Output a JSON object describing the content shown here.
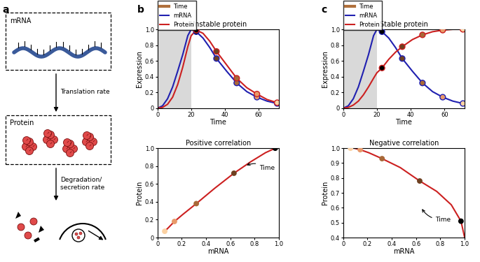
{
  "panel_labels": [
    "a",
    "b",
    "c"
  ],
  "diagram": {
    "boxes": [
      {
        "label": "mRNA"
      },
      {
        "label": "Protein"
      }
    ],
    "arrows": [
      {
        "label": "Translation rate"
      },
      {
        "label": "Degradation/\nsecretion rate"
      }
    ]
  },
  "chart_data": [
    {
      "type": "line",
      "panel": 1,
      "title": "Unstable protein",
      "xlabel": "Time",
      "ylabel": "Expression",
      "xlim": [
        0,
        72
      ],
      "xticks": [
        0,
        20,
        40,
        60
      ],
      "ylim": [
        0,
        1
      ],
      "yticks": [
        0,
        0.2,
        0.4,
        0.6,
        0.8,
        {
          "value": 1,
          "label": "1.0"
        }
      ],
      "shaded_x": [
        0,
        20
      ],
      "legend": "upper left",
      "time_points": {
        "name": "Time",
        "color": "#b0703c",
        "x": [
          23,
          35,
          47,
          59,
          71
        ],
        "colors": [
          "#000000",
          "#6e4020",
          "#a86838",
          "#e89a6a",
          "#fbd1a2"
        ]
      },
      "series": [
        {
          "name": "mRNA",
          "color": "#2020b0",
          "x": [
            0,
            3,
            6,
            9,
            12,
            15,
            18,
            20,
            23,
            27,
            31,
            35,
            41,
            47,
            53,
            59,
            65,
            71
          ],
          "values": [
            0,
            0.03,
            0.12,
            0.27,
            0.47,
            0.68,
            0.92,
            1.0,
            0.97,
            0.89,
            0.77,
            0.63,
            0.47,
            0.32,
            0.21,
            0.14,
            0.09,
            0.06
          ]
        },
        {
          "name": "Protein",
          "color": "#cc2020",
          "x": [
            0,
            3,
            6,
            9,
            12,
            15,
            18,
            20,
            23,
            27,
            31,
            35,
            41,
            47,
            53,
            59,
            65,
            71
          ],
          "values": [
            0,
            0.01,
            0.05,
            0.14,
            0.3,
            0.52,
            0.78,
            0.92,
            0.99,
            0.95,
            0.85,
            0.72,
            0.55,
            0.38,
            0.26,
            0.18,
            0.11,
            0.07
          ]
        }
      ]
    },
    {
      "type": "line",
      "panel": 1,
      "title": "Positive correlation",
      "xlabel": "mRNA",
      "ylabel": "Protein",
      "xlim": [
        0,
        1
      ],
      "xticks": [
        0,
        0.2,
        0.4,
        0.6,
        0.8,
        {
          "value": 1,
          "label": "1.0"
        }
      ],
      "ylim": [
        0,
        1
      ],
      "yticks": [
        0,
        0.2,
        0.4,
        0.6,
        0.8,
        {
          "value": 1,
          "label": "1.0"
        }
      ],
      "annotation": "Time",
      "curve": {
        "color": "#cc2020",
        "x": [
          0.06,
          0.09,
          0.14,
          0.21,
          0.32,
          0.47,
          0.63,
          0.77,
          0.89,
          0.97
        ],
        "values": [
          0.07,
          0.11,
          0.18,
          0.26,
          0.38,
          0.55,
          0.72,
          0.85,
          0.95,
          1.0
        ]
      },
      "points": {
        "x": [
          0.97,
          0.63,
          0.32,
          0.14,
          0.06
        ],
        "values": [
          1.0,
          0.72,
          0.38,
          0.18,
          0.07
        ],
        "colors": [
          "#000000",
          "#6e4020",
          "#a86838",
          "#e89a6a",
          "#fbd1a2"
        ]
      }
    },
    {
      "type": "line",
      "panel": 2,
      "title": "Stable protein",
      "xlabel": "Time",
      "ylabel": "Expression",
      "xlim": [
        0,
        72
      ],
      "xticks": [
        0,
        20,
        40,
        60
      ],
      "ylim": [
        0,
        1
      ],
      "yticks": [
        0,
        0.2,
        0.4,
        0.6,
        0.8,
        {
          "value": 1,
          "label": "1.0"
        }
      ],
      "shaded_x": [
        0,
        20
      ],
      "legend": "upper left",
      "time_points": {
        "name": "Time",
        "color": "#b0703c",
        "x": [
          23,
          35,
          47,
          59,
          71
        ],
        "colors": [
          "#000000",
          "#6e4020",
          "#a86838",
          "#e89a6a",
          "#fbd1a2"
        ]
      },
      "series": [
        {
          "name": "mRNA",
          "color": "#2020b0",
          "x": [
            0,
            3,
            6,
            9,
            12,
            15,
            18,
            20,
            23,
            27,
            31,
            35,
            41,
            47,
            53,
            59,
            65,
            71
          ],
          "values": [
            0,
            0.03,
            0.12,
            0.27,
            0.47,
            0.68,
            0.92,
            1.0,
            0.97,
            0.89,
            0.77,
            0.63,
            0.47,
            0.32,
            0.21,
            0.14,
            0.09,
            0.06
          ]
        },
        {
          "name": "Protein",
          "color": "#cc2020",
          "x": [
            0,
            3,
            6,
            9,
            12,
            15,
            18,
            20,
            23,
            27,
            31,
            35,
            41,
            47,
            53,
            59,
            65,
            71
          ],
          "values": [
            0,
            0.01,
            0.04,
            0.09,
            0.17,
            0.27,
            0.38,
            0.45,
            0.51,
            0.62,
            0.71,
            0.78,
            0.87,
            0.93,
            0.97,
            0.99,
            1.0,
            1.0
          ]
        }
      ]
    },
    {
      "type": "line",
      "panel": 2,
      "title": "Negative correlation",
      "xlabel": "mRNA",
      "ylabel": "Protein",
      "xlim": [
        0,
        1
      ],
      "xticks": [
        0,
        0.2,
        0.4,
        0.6,
        0.8,
        {
          "value": 1,
          "label": "1.0"
        }
      ],
      "ylim": [
        0.4,
        1
      ],
      "yticks": [
        0.4,
        0.5,
        0.6,
        0.7,
        0.8,
        0.9,
        {
          "value": 1,
          "label": "1.0"
        }
      ],
      "annotation": "Time",
      "curve": {
        "color": "#cc2020",
        "x": [
          0.06,
          0.09,
          0.14,
          0.21,
          0.32,
          0.47,
          0.63,
          0.77,
          0.89,
          0.97,
          1.0
        ],
        "values": [
          1.0,
          1.0,
          0.99,
          0.97,
          0.93,
          0.87,
          0.78,
          0.71,
          0.62,
          0.51,
          0.4
        ]
      },
      "points": {
        "x": [
          0.97,
          0.63,
          0.32,
          0.14,
          0.06
        ],
        "values": [
          0.51,
          0.78,
          0.93,
          0.99,
          1.0
        ],
        "colors": [
          "#000000",
          "#6e4020",
          "#a86838",
          "#e89a6a",
          "#fbd1a2"
        ]
      }
    }
  ]
}
